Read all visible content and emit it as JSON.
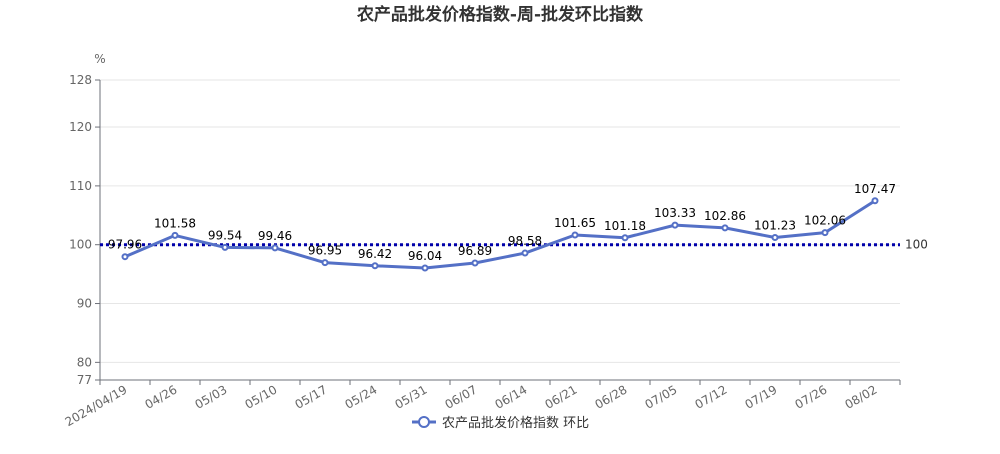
{
  "chart_data": {
    "type": "line",
    "title": "农产品批发价格指数-周-批发环比指数",
    "ylabel": "%",
    "xlabel": "",
    "ylim": [
      77,
      128
    ],
    "yticks": [
      77,
      80,
      90,
      100,
      110,
      120,
      128
    ],
    "grid": true,
    "legend_position": "bottom-center",
    "categories": [
      "2024/04/19",
      "04/26",
      "05/03",
      "05/10",
      "05/17",
      "05/24",
      "05/31",
      "06/07",
      "06/14",
      "06/21",
      "06/28",
      "07/05",
      "07/12",
      "07/19",
      "07/26",
      "08/02"
    ],
    "series": [
      {
        "name": "农产品批发价格指数 环比",
        "color": "#5470c6",
        "values": [
          97.96,
          101.58,
          99.54,
          99.46,
          96.95,
          96.42,
          96.04,
          96.89,
          98.58,
          101.65,
          101.18,
          103.33,
          102.86,
          101.23,
          102.06,
          107.47
        ],
        "labels": [
          "97.96",
          "101.58",
          "99.54",
          "99.46",
          "96.95",
          "96.42",
          "96.04",
          "96.89",
          "98.58",
          "101.65",
          "101.18",
          "103.33",
          "102.86",
          "101.23",
          "102.06",
          "107.47"
        ]
      }
    ],
    "reference_line": {
      "value": 100,
      "label": "100",
      "color": "#0000aa"
    }
  }
}
